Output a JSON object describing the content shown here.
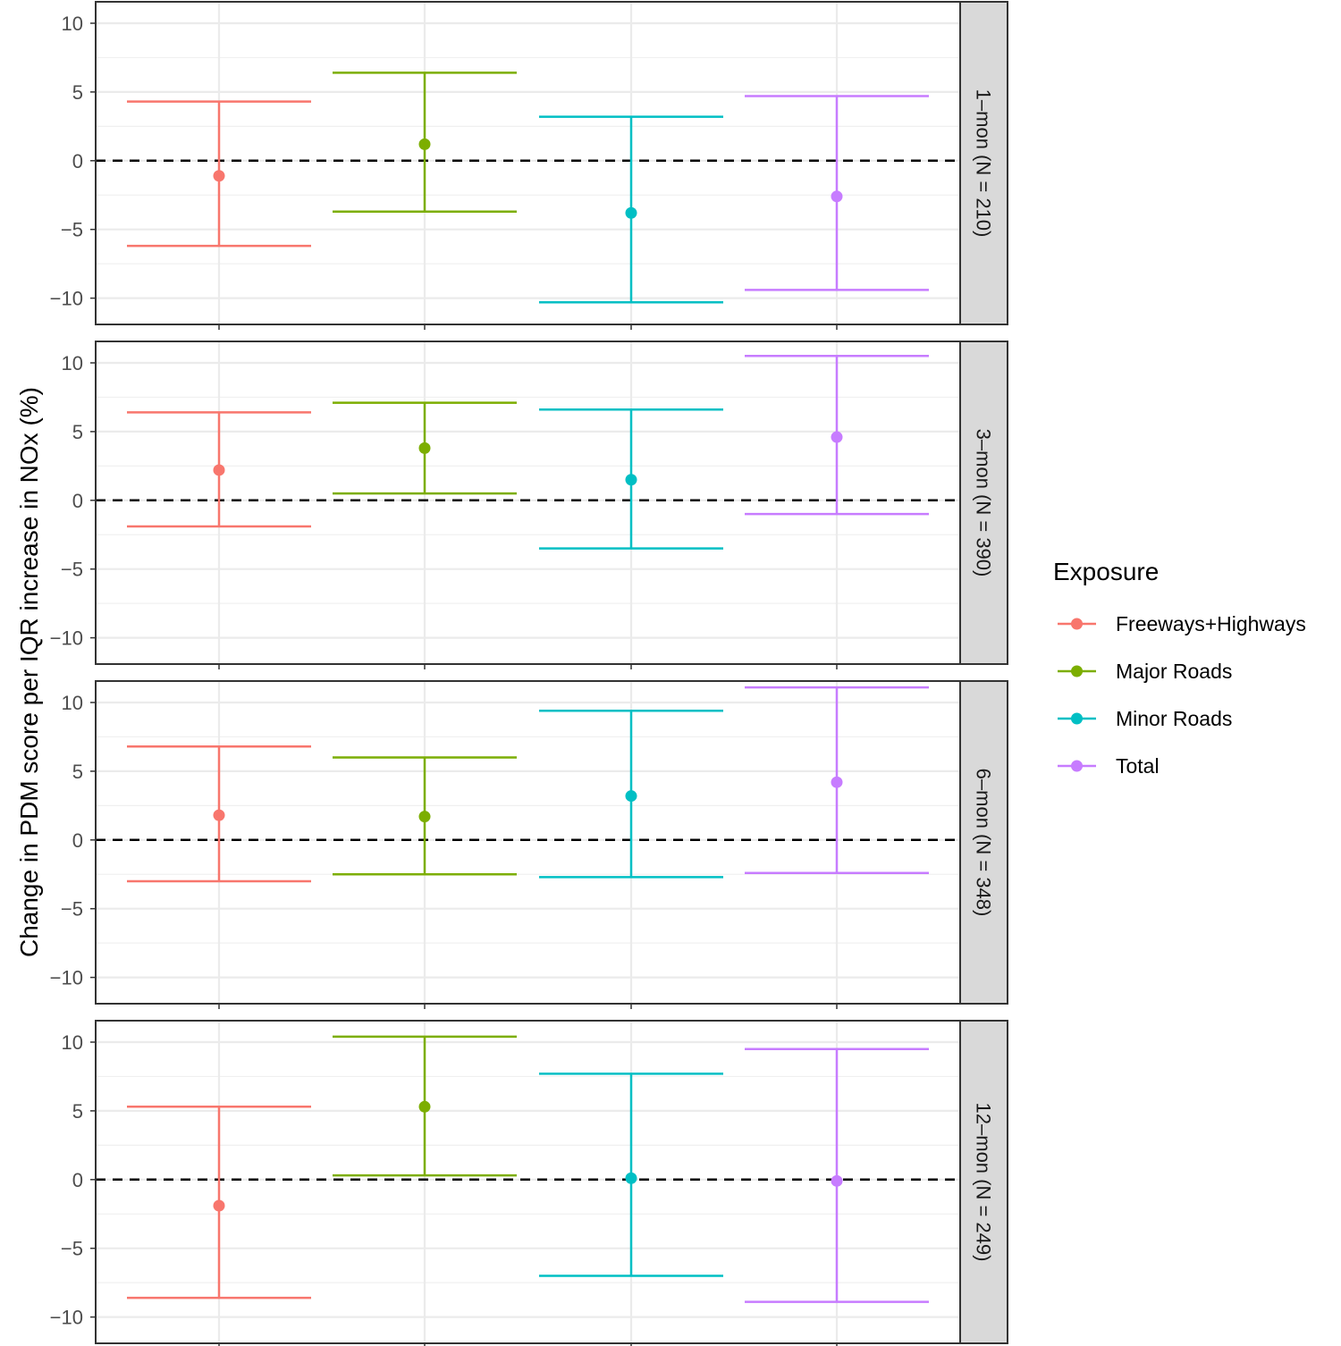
{
  "chart_data": {
    "type": "errorbar",
    "ylabel": "Change in PDM score per IQR increase in NOx (%)",
    "xlabel": "",
    "ylim": [
      -11,
      12
    ],
    "yticks": [
      -10,
      -5,
      0,
      5,
      10
    ],
    "yticklabels": [
      "−10",
      "−5",
      "0",
      "5",
      "10"
    ],
    "reference_line": 0,
    "grid": true,
    "legend": {
      "title": "Exposure",
      "position": "right"
    },
    "categories": [
      "Freeways+Highways",
      "Major Roads",
      "Minor Roads",
      "Total"
    ],
    "colors": {
      "Freeways+Highways": "#F8766D",
      "Major Roads": "#7CAE00",
      "Minor Roads": "#00BFC4",
      "Total": "#C77CFF"
    },
    "panels": [
      {
        "label": "1–mon (N = 210)",
        "series": [
          {
            "name": "Freeways+Highways",
            "estimate": -1.1,
            "lower": -6.2,
            "upper": 4.3
          },
          {
            "name": "Major Roads",
            "estimate": 1.2,
            "lower": -3.7,
            "upper": 6.4
          },
          {
            "name": "Minor Roads",
            "estimate": -3.8,
            "lower": -10.3,
            "upper": 3.2
          },
          {
            "name": "Total",
            "estimate": -2.6,
            "lower": -9.4,
            "upper": 4.7
          }
        ]
      },
      {
        "label": "3–mon (N = 390)",
        "series": [
          {
            "name": "Freeways+Highways",
            "estimate": 2.2,
            "lower": -1.9,
            "upper": 6.4
          },
          {
            "name": "Major Roads",
            "estimate": 3.8,
            "lower": 0.5,
            "upper": 7.1
          },
          {
            "name": "Minor Roads",
            "estimate": 1.5,
            "lower": -3.5,
            "upper": 6.6
          },
          {
            "name": "Total",
            "estimate": 4.6,
            "lower": -1.0,
            "upper": 10.5
          }
        ]
      },
      {
        "label": "6–mon (N = 348)",
        "series": [
          {
            "name": "Freeways+Highways",
            "estimate": 1.8,
            "lower": -3.0,
            "upper": 6.8
          },
          {
            "name": "Major Roads",
            "estimate": 1.7,
            "lower": -2.5,
            "upper": 6.0
          },
          {
            "name": "Minor Roads",
            "estimate": 3.2,
            "lower": -2.7,
            "upper": 9.4
          },
          {
            "name": "Total",
            "estimate": 4.2,
            "lower": -2.4,
            "upper": 11.1
          }
        ]
      },
      {
        "label": "12–mon (N = 249)",
        "series": [
          {
            "name": "Freeways+Highways",
            "estimate": -1.9,
            "lower": -8.6,
            "upper": 5.3
          },
          {
            "name": "Major Roads",
            "estimate": 5.3,
            "lower": 0.3,
            "upper": 10.4
          },
          {
            "name": "Minor Roads",
            "estimate": 0.1,
            "lower": -7.0,
            "upper": 7.7
          },
          {
            "name": "Total",
            "estimate": -0.1,
            "lower": -8.9,
            "upper": 9.5
          }
        ]
      }
    ]
  }
}
